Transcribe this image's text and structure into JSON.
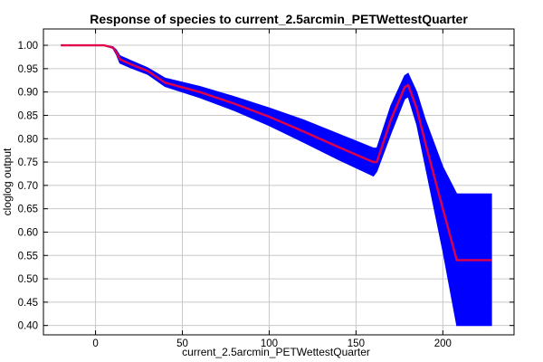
{
  "chart_data": {
    "type": "line",
    "title": "Response of species to current_2.5arcmin_PETWettestQuarter",
    "xlabel": "current_2.5arcmin_PETWettestQuarter",
    "ylabel": "cloglog output",
    "xlim": [
      -30,
      241
    ],
    "ylim": [
      0.38,
      1.035
    ],
    "grid": true,
    "x_ticks": [
      "0",
      "50",
      "100",
      "150",
      "200"
    ],
    "x_tick_values": [
      0,
      50,
      100,
      150,
      200
    ],
    "y_ticks": [
      "0.40",
      "0.45",
      "0.50",
      "0.55",
      "0.60",
      "0.65",
      "0.70",
      "0.75",
      "0.80",
      "0.85",
      "0.90",
      "0.95",
      "1.00"
    ],
    "y_tick_values": [
      0.4,
      0.45,
      0.5,
      0.55,
      0.6,
      0.65,
      0.7,
      0.75,
      0.8,
      0.85,
      0.9,
      0.95,
      1.0
    ],
    "series": [
      {
        "role": "mean",
        "color": "#e0004a",
        "x": [
          -20,
          5,
          10,
          12,
          14,
          20,
          30,
          40,
          60,
          80,
          100,
          120,
          140,
          160,
          162,
          170,
          178,
          180,
          185,
          190,
          200,
          208,
          228
        ],
        "y": [
          1.0,
          1.0,
          0.995,
          0.985,
          0.97,
          0.96,
          0.945,
          0.92,
          0.9,
          0.875,
          0.847,
          0.815,
          0.782,
          0.75,
          0.75,
          0.84,
          0.91,
          0.915,
          0.865,
          0.79,
          0.65,
          0.54,
          0.54
        ]
      },
      {
        "role": "confidence band",
        "color": "#0000ff",
        "x": [
          -20,
          5,
          10,
          12,
          14,
          20,
          30,
          40,
          60,
          80,
          100,
          120,
          140,
          160,
          162,
          170,
          178,
          180,
          185,
          190,
          200,
          208,
          228
        ],
        "upper": [
          1.0,
          1.0,
          0.997,
          0.99,
          0.978,
          0.968,
          0.952,
          0.93,
          0.912,
          0.89,
          0.866,
          0.84,
          0.81,
          0.78,
          0.78,
          0.87,
          0.935,
          0.94,
          0.9,
          0.84,
          0.74,
          0.682,
          0.682
        ],
        "lower": [
          1.0,
          1.0,
          0.993,
          0.98,
          0.962,
          0.952,
          0.938,
          0.912,
          0.888,
          0.86,
          0.828,
          0.792,
          0.755,
          0.72,
          0.73,
          0.81,
          0.885,
          0.89,
          0.83,
          0.74,
          0.56,
          0.4,
          0.4
        ]
      }
    ]
  }
}
